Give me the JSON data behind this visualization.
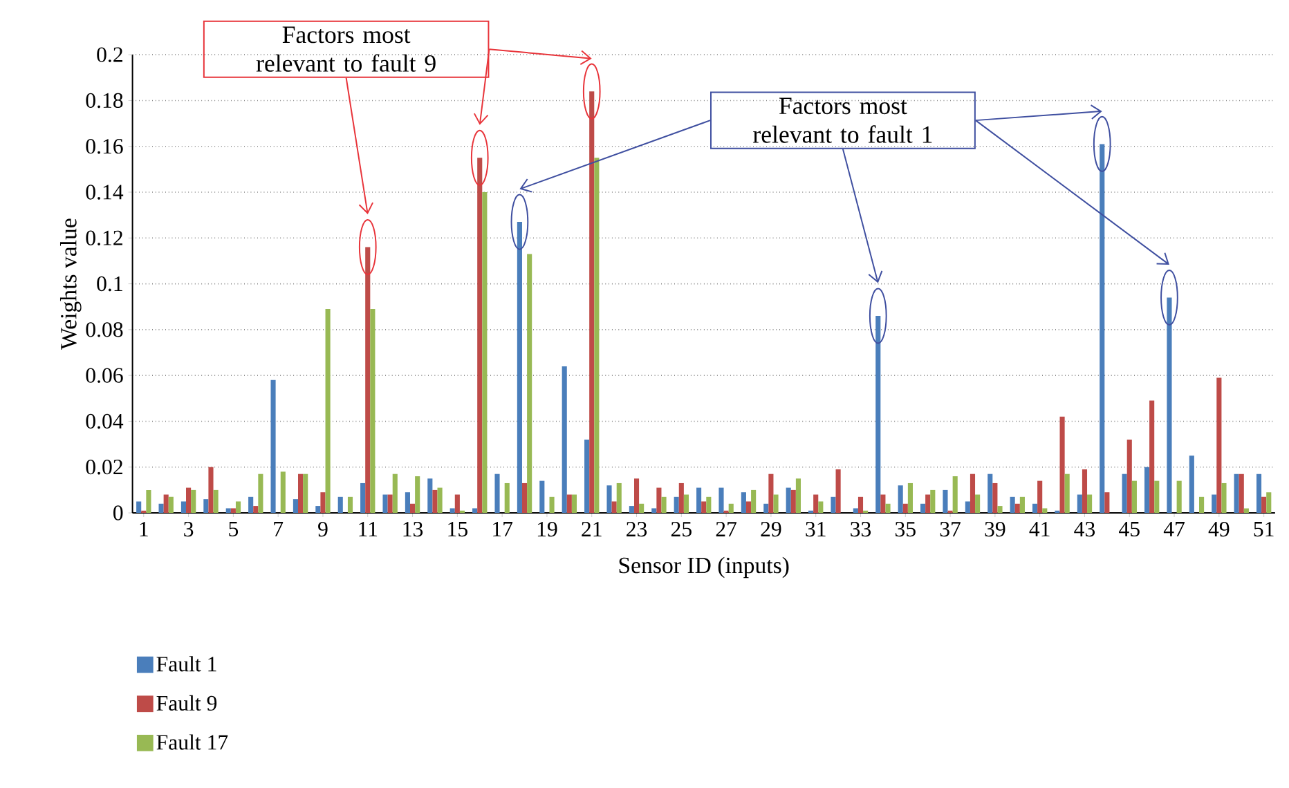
{
  "chart_data": {
    "type": "bar",
    "xlabel": "Sensor ID (inputs)",
    "ylabel": "Weights value",
    "categories": [
      "1",
      null,
      "3",
      null,
      "5",
      null,
      "7",
      null,
      "9",
      null,
      "11",
      null,
      "13",
      null,
      "15",
      null,
      "17",
      null,
      "19",
      null,
      "21",
      null,
      "23",
      null,
      "25",
      null,
      "27",
      null,
      "29",
      null,
      "31",
      null,
      "33",
      null,
      "35",
      null,
      "37",
      null,
      "39",
      null,
      "41",
      null,
      "43",
      null,
      "45",
      null,
      "47",
      null,
      "49",
      null,
      "51"
    ],
    "series": [
      {
        "name": "Fault 1",
        "color": "#4a7ebb",
        "values": [
          0.005,
          0.004,
          0.005,
          0.006,
          0.002,
          0.007,
          0.058,
          0.006,
          0.003,
          0.007,
          0.013,
          0.008,
          0.009,
          0.015,
          0.002,
          0.002,
          0.017,
          0.127,
          0.014,
          0.064,
          0.032,
          0.012,
          0.003,
          0.002,
          0.007,
          0.011,
          0.011,
          0.009,
          0.004,
          0.011,
          0.001,
          0.007,
          0.002,
          0.086,
          0.012,
          0.004,
          0.01,
          0.005,
          0.017,
          0.007,
          0.004,
          0.001,
          0.008,
          0.161,
          0.017,
          0.02,
          0.094,
          0.025,
          0.008,
          0.017,
          0.017
        ]
      },
      {
        "name": "Fault 9",
        "color": "#be4b48",
        "values": [
          0.001,
          0.008,
          0.011,
          0.02,
          0.002,
          0.003,
          0,
          0.017,
          0.009,
          0,
          0.116,
          0.008,
          0.004,
          0.01,
          0.008,
          0.155,
          0,
          0.013,
          0,
          0.008,
          0.184,
          0.005,
          0.015,
          0.011,
          0.013,
          0.005,
          0.001,
          0.005,
          0.017,
          0.01,
          0.008,
          0.019,
          0.007,
          0.008,
          0.004,
          0.008,
          0.001,
          0.017,
          0.013,
          0.004,
          0.014,
          0.042,
          0.019,
          0.009,
          0.032,
          0.049,
          0,
          0,
          0.059,
          0.017,
          0.007
        ]
      },
      {
        "name": "Fault 17",
        "color": "#98b954",
        "values": [
          0.01,
          0.007,
          0.01,
          0.01,
          0.005,
          0.017,
          0.018,
          0.017,
          0.089,
          0.007,
          0.089,
          0.017,
          0.016,
          0.011,
          0.001,
          0.14,
          0.013,
          0.113,
          0.007,
          0.008,
          0.155,
          0.013,
          0.004,
          0.007,
          0.008,
          0.007,
          0.004,
          0.01,
          0.008,
          0.015,
          0.005,
          0,
          0.001,
          0.004,
          0.013,
          0.01,
          0.016,
          0.008,
          0.003,
          0.007,
          0.002,
          0.017,
          0.008,
          0,
          0.014,
          0.014,
          0.014,
          0.007,
          0.013,
          0.002,
          0.009
        ]
      }
    ],
    "ylim": [
      0,
      0.2
    ],
    "yticks": [
      0,
      0.02,
      0.04,
      0.06,
      0.08,
      0.1,
      0.12,
      0.14,
      0.16,
      0.18,
      0.2
    ],
    "grid": "y",
    "legend": "bottom left",
    "annotations": [
      "Factors most relevant to fault 9",
      "Factors most relevant to fault 1"
    ]
  }
}
